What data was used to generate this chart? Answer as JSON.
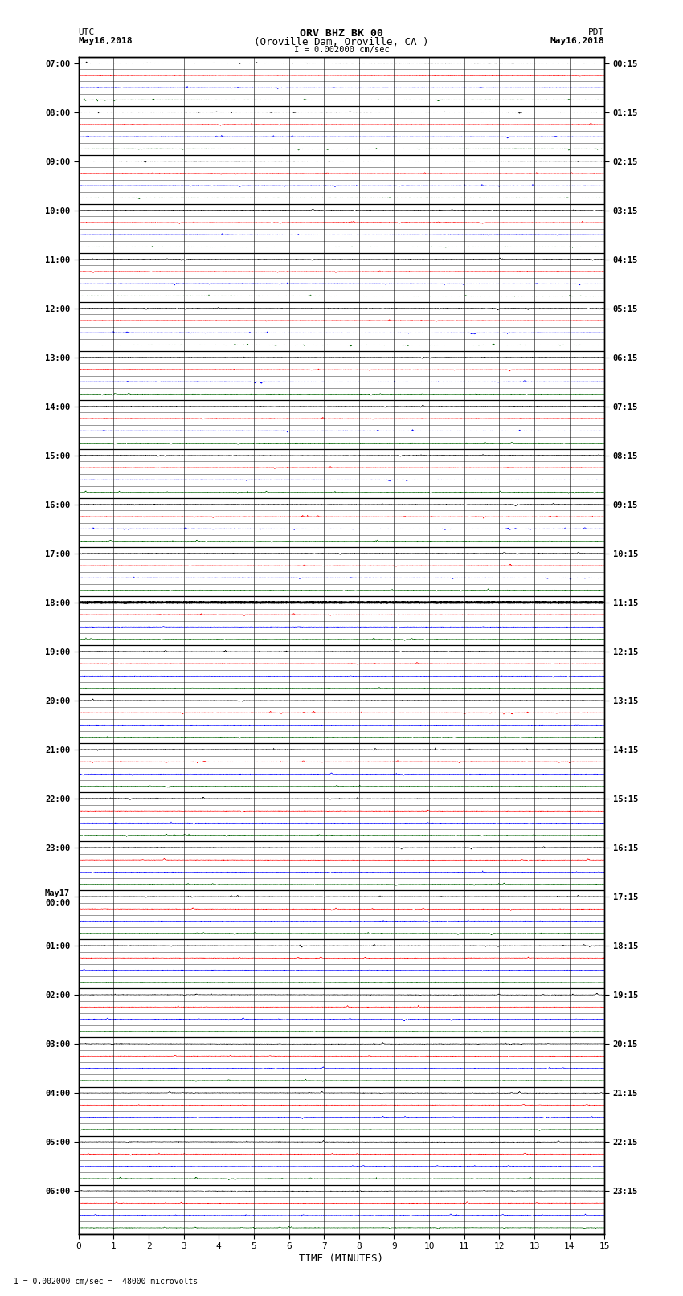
{
  "title_line1": "ORV BHZ BK 00",
  "title_line2": "(Oroville Dam, Oroville, CA )",
  "scale_label": "I = 0.002000 cm/sec",
  "left_timezone": "UTC",
  "left_date": "May16,2018",
  "right_timezone": "PDT",
  "right_date": "May16,2018",
  "xlabel": "TIME (MINUTES)",
  "footer": "1 = 0.002000 cm/sec =  48000 microvolts",
  "bg_color": "#ffffff",
  "trace_color_black": "#000000",
  "trace_color_red": "#ff0000",
  "trace_color_blue": "#0000ff",
  "trace_color_green": "#006400",
  "grid_color": "#000000",
  "left_labels": [
    "07:00",
    "",
    "",
    "",
    "08:00",
    "",
    "",
    "",
    "09:00",
    "",
    "",
    "",
    "10:00",
    "",
    "",
    "",
    "11:00",
    "",
    "",
    "",
    "12:00",
    "",
    "",
    "",
    "13:00",
    "",
    "",
    "",
    "14:00",
    "",
    "",
    "",
    "15:00",
    "",
    "",
    "",
    "16:00",
    "",
    "",
    "",
    "17:00",
    "",
    "",
    "",
    "18:00",
    "",
    "",
    "",
    "19:00",
    "",
    "",
    "",
    "20:00",
    "",
    "",
    "",
    "21:00",
    "",
    "",
    "",
    "22:00",
    "",
    "",
    "",
    "23:00",
    "",
    "",
    "",
    "May17\n00:00",
    "",
    "",
    "",
    "01:00",
    "",
    "",
    "",
    "02:00",
    "",
    "",
    "",
    "03:00",
    "",
    "",
    "",
    "04:00",
    "",
    "",
    "",
    "05:00",
    "",
    "",
    "",
    "06:00",
    "",
    "",
    ""
  ],
  "right_labels": [
    "00:15",
    "",
    "",
    "",
    "01:15",
    "",
    "",
    "",
    "02:15",
    "",
    "",
    "",
    "03:15",
    "",
    "",
    "",
    "04:15",
    "",
    "",
    "",
    "05:15",
    "",
    "",
    "",
    "06:15",
    "",
    "",
    "",
    "07:15",
    "",
    "",
    "",
    "08:15",
    "",
    "",
    "",
    "09:15",
    "",
    "",
    "",
    "10:15",
    "",
    "",
    "",
    "11:15",
    "",
    "",
    "",
    "12:15",
    "",
    "",
    "",
    "13:15",
    "",
    "",
    "",
    "14:15",
    "",
    "",
    "",
    "15:15",
    "",
    "",
    "",
    "16:15",
    "",
    "",
    "",
    "17:15",
    "",
    "",
    "",
    "18:15",
    "",
    "",
    "",
    "19:15",
    "",
    "",
    "",
    "20:15",
    "",
    "",
    "",
    "21:15",
    "",
    "",
    "",
    "22:15",
    "",
    "",
    "",
    "23:15",
    "",
    "",
    ""
  ],
  "n_rows": 96,
  "x_min": 0,
  "x_max": 15,
  "x_ticks": [
    0,
    1,
    2,
    3,
    4,
    5,
    6,
    7,
    8,
    9,
    10,
    11,
    12,
    13,
    14,
    15
  ],
  "special_row": 44,
  "spike_amplitude": 0.32,
  "noise_level": 0.018
}
